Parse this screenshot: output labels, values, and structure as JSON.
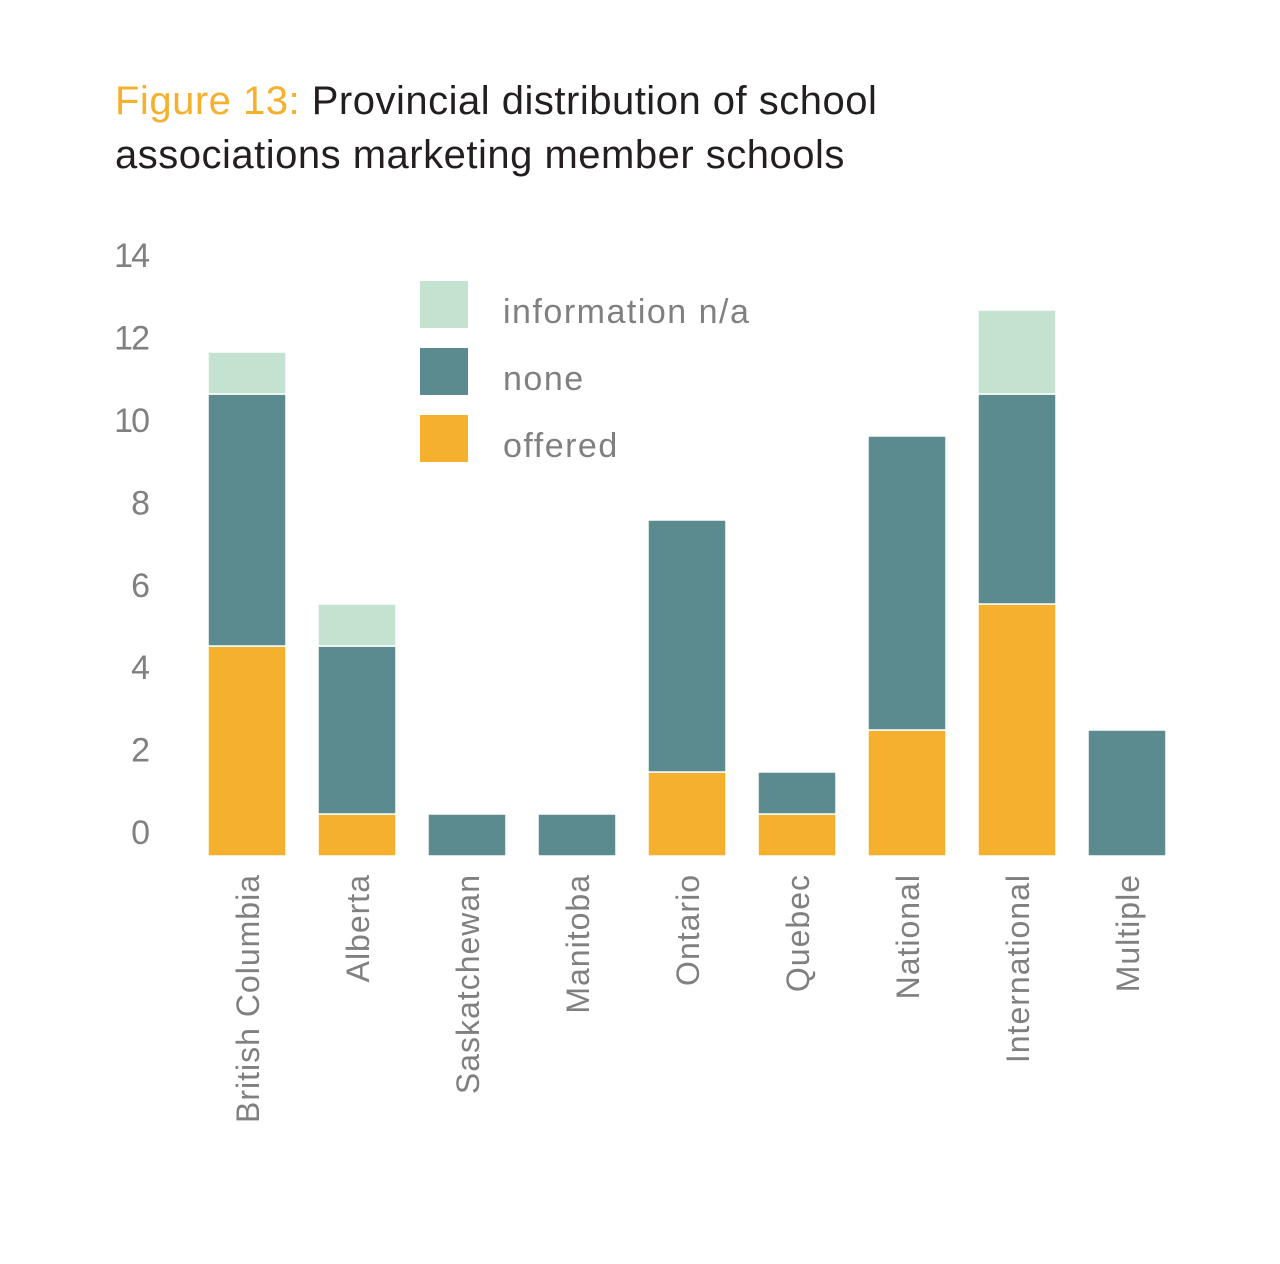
{
  "title": {
    "prefix": "Figure 13:",
    "line1": "Provincial distribution of school",
    "line2": "associations marketing member schools"
  },
  "colors": {
    "title_accent": "#f5b02e",
    "title_text": "#231f20",
    "axis_text": "#808080"
  },
  "chart_data": {
    "type": "bar",
    "stacked": true,
    "title": "Figure 13: Provincial distribution of school associations marketing member schools",
    "xlabel": "",
    "ylabel": "",
    "ylim": [
      0,
      14
    ],
    "yticks": [
      0,
      2,
      4,
      6,
      8,
      10,
      12,
      14
    ],
    "grid": false,
    "legend_position": "top-center",
    "categories": [
      "British Columbia",
      "Alberta",
      "Saskatchewan",
      "Manitoba",
      "Ontario",
      "Quebec",
      "National",
      "International",
      "Multiple"
    ],
    "series": [
      {
        "name": "offered",
        "color": "#f5b02e",
        "values": [
          5,
          1,
          0,
          0,
          2,
          1,
          3,
          6,
          0
        ]
      },
      {
        "name": "none",
        "color": "#5b8b8f",
        "values": [
          6,
          4,
          1,
          1,
          6,
          1,
          7,
          5,
          3
        ]
      },
      {
        "name": "information n/a",
        "color": "#c3e3d0",
        "values": [
          1,
          1,
          0,
          0,
          0,
          0,
          0,
          2,
          0
        ]
      }
    ],
    "legend": [
      "information n/a",
      "none",
      "offered"
    ]
  }
}
